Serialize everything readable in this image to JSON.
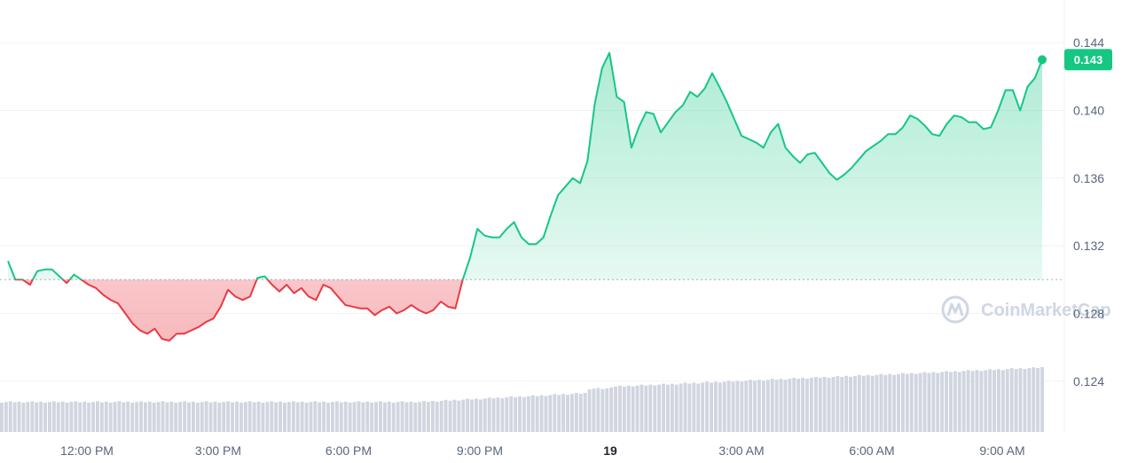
{
  "watermark": "CoinMarketCap",
  "colors": {
    "up": "#16c784",
    "down": "#ea3943",
    "grid": "#eff2f5",
    "volume": "#d1d5df",
    "baseline": "#a8b0bf"
  },
  "chart_data": {
    "type": "line",
    "baseline": 0.13,
    "ylim": [
      0.121,
      0.146
    ],
    "yticks": [
      "0.144",
      "0.140",
      "0.136",
      "0.132",
      "0.128",
      "0.124"
    ],
    "current_value_label": "0.143",
    "x_tick_labels": [
      "12:00 PM",
      "3:00 PM",
      "6:00 PM",
      "9:00 PM",
      "19",
      "3:00 AM",
      "6:00 AM",
      "9:00 AM"
    ],
    "x_tick_bold": [
      false,
      false,
      false,
      false,
      true,
      false,
      false,
      false
    ],
    "price_series": [
      [
        "10:00",
        0.1311
      ],
      [
        "10:10",
        0.13
      ],
      [
        "10:20",
        0.13
      ],
      [
        "10:30",
        0.1297
      ],
      [
        "10:40",
        0.1305
      ],
      [
        "10:50",
        0.1306
      ],
      [
        "11:00",
        0.1306
      ],
      [
        "11:10",
        0.1302
      ],
      [
        "11:20",
        0.1298
      ],
      [
        "11:30",
        0.1303
      ],
      [
        "11:40",
        0.13
      ],
      [
        "11:50",
        0.1297
      ],
      [
        "12:00",
        0.1295
      ],
      [
        "12:10",
        0.1291
      ],
      [
        "12:20",
        0.1288
      ],
      [
        "12:30",
        0.1286
      ],
      [
        "12:40",
        0.128
      ],
      [
        "12:50",
        0.1274
      ],
      [
        "13:00",
        0.127
      ],
      [
        "13:10",
        0.1268
      ],
      [
        "13:20",
        0.1271
      ],
      [
        "13:30",
        0.1265
      ],
      [
        "13:40",
        0.1264
      ],
      [
        "13:50",
        0.1268
      ],
      [
        "14:00",
        0.1268
      ],
      [
        "14:10",
        0.127
      ],
      [
        "14:20",
        0.1272
      ],
      [
        "14:30",
        0.1275
      ],
      [
        "14:40",
        0.1277
      ],
      [
        "14:50",
        0.1284
      ],
      [
        "15:00",
        0.1294
      ],
      [
        "15:10",
        0.129
      ],
      [
        "15:20",
        0.1288
      ],
      [
        "15:30",
        0.129
      ],
      [
        "15:40",
        0.1301
      ],
      [
        "15:50",
        0.1302
      ],
      [
        "16:00",
        0.1297
      ],
      [
        "16:10",
        0.1293
      ],
      [
        "16:20",
        0.1297
      ],
      [
        "16:30",
        0.1292
      ],
      [
        "16:40",
        0.1295
      ],
      [
        "16:50",
        0.129
      ],
      [
        "17:00",
        0.1288
      ],
      [
        "17:10",
        0.1297
      ],
      [
        "17:20",
        0.1295
      ],
      [
        "17:30",
        0.129
      ],
      [
        "17:40",
        0.1285
      ],
      [
        "17:50",
        0.1284
      ],
      [
        "18:00",
        0.1283
      ],
      [
        "18:10",
        0.1283
      ],
      [
        "18:20",
        0.1279
      ],
      [
        "18:30",
        0.1282
      ],
      [
        "18:40",
        0.1284
      ],
      [
        "18:50",
        0.128
      ],
      [
        "19:00",
        0.1282
      ],
      [
        "19:10",
        0.1285
      ],
      [
        "19:20",
        0.1282
      ],
      [
        "19:30",
        0.128
      ],
      [
        "19:40",
        0.1282
      ],
      [
        "19:50",
        0.1287
      ],
      [
        "20:00",
        0.1284
      ],
      [
        "20:10",
        0.1283
      ],
      [
        "20:20",
        0.13
      ],
      [
        "20:30",
        0.1313
      ],
      [
        "20:40",
        0.133
      ],
      [
        "20:50",
        0.1326
      ],
      [
        "21:00",
        0.1325
      ],
      [
        "21:10",
        0.1325
      ],
      [
        "21:20",
        0.133
      ],
      [
        "21:30",
        0.1334
      ],
      [
        "21:40",
        0.1325
      ],
      [
        "21:50",
        0.1321
      ],
      [
        "22:00",
        0.1321
      ],
      [
        "22:10",
        0.1325
      ],
      [
        "22:20",
        0.1338
      ],
      [
        "22:30",
        0.135
      ],
      [
        "22:40",
        0.1355
      ],
      [
        "22:50",
        0.136
      ],
      [
        "23:00",
        0.1357
      ],
      [
        "23:10",
        0.137
      ],
      [
        "23:20",
        0.1404
      ],
      [
        "23:30",
        0.1425
      ],
      [
        "23:40",
        0.1434
      ],
      [
        "23:50",
        0.1408
      ],
      [
        "00:00",
        0.1405
      ],
      [
        "00:10",
        0.1378
      ],
      [
        "00:20",
        0.139
      ],
      [
        "00:30",
        0.1399
      ],
      [
        "00:40",
        0.1398
      ],
      [
        "00:50",
        0.1387
      ],
      [
        "01:00",
        0.1393
      ],
      [
        "01:10",
        0.1399
      ],
      [
        "01:20",
        0.1403
      ],
      [
        "01:30",
        0.1411
      ],
      [
        "01:40",
        0.1408
      ],
      [
        "01:50",
        0.1413
      ],
      [
        "02:00",
        0.1422
      ],
      [
        "02:10",
        0.1414
      ],
      [
        "02:20",
        0.1405
      ],
      [
        "02:30",
        0.1395
      ],
      [
        "02:40",
        0.1385
      ],
      [
        "02:50",
        0.1383
      ],
      [
        "03:00",
        0.1381
      ],
      [
        "03:10",
        0.1378
      ],
      [
        "03:20",
        0.1387
      ],
      [
        "03:30",
        0.1392
      ],
      [
        "03:40",
        0.1378
      ],
      [
        "03:50",
        0.1373
      ],
      [
        "04:00",
        0.1369
      ],
      [
        "04:10",
        0.1374
      ],
      [
        "04:20",
        0.1375
      ],
      [
        "04:30",
        0.1369
      ],
      [
        "04:40",
        0.1363
      ],
      [
        "04:50",
        0.1359
      ],
      [
        "05:00",
        0.1362
      ],
      [
        "05:10",
        0.1366
      ],
      [
        "05:20",
        0.1371
      ],
      [
        "05:30",
        0.1376
      ],
      [
        "05:40",
        0.1379
      ],
      [
        "05:50",
        0.1382
      ],
      [
        "06:00",
        0.1386
      ],
      [
        "06:10",
        0.1386
      ],
      [
        "06:20",
        0.139
      ],
      [
        "06:30",
        0.1397
      ],
      [
        "06:40",
        0.1395
      ],
      [
        "06:50",
        0.1391
      ],
      [
        "07:00",
        0.1386
      ],
      [
        "07:10",
        0.1385
      ],
      [
        "07:20",
        0.1392
      ],
      [
        "07:30",
        0.1397
      ],
      [
        "07:40",
        0.1396
      ],
      [
        "07:50",
        0.1393
      ],
      [
        "08:00",
        0.1393
      ],
      [
        "08:10",
        0.1389
      ],
      [
        "08:20",
        0.139
      ],
      [
        "08:30",
        0.14
      ],
      [
        "08:40",
        0.1412
      ],
      [
        "08:50",
        0.1412
      ],
      [
        "09:00",
        0.14
      ],
      [
        "09:10",
        0.1414
      ],
      [
        "09:20",
        0.1419
      ],
      [
        "09:30",
        0.143
      ]
    ]
  }
}
